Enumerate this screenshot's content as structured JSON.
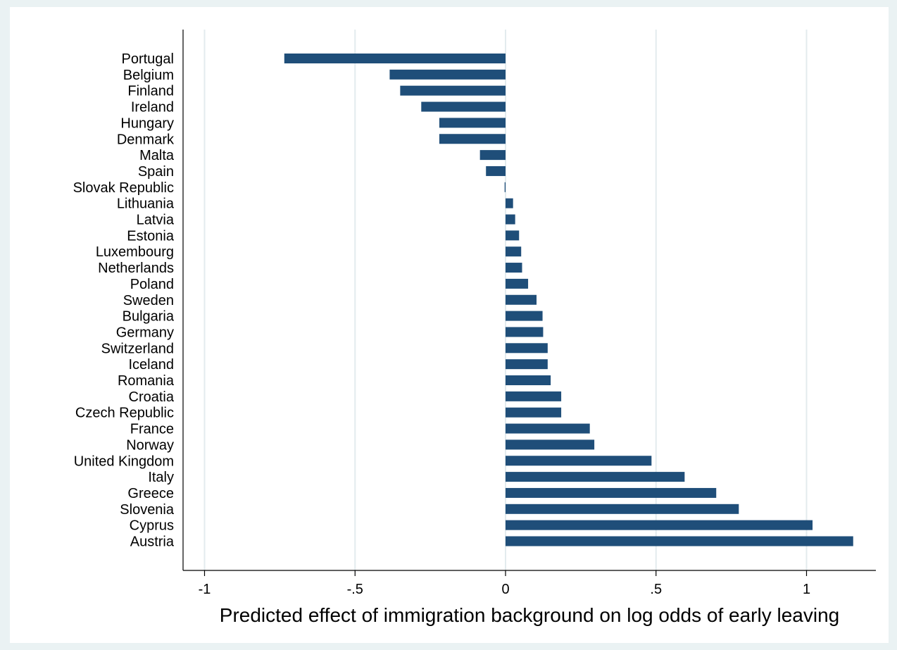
{
  "chart_data": {
    "type": "bar",
    "orientation": "horizontal",
    "title": "",
    "xlabel": "Predicted effect of immigration background on log odds of early leaving",
    "ylabel": "",
    "xlim": [
      -1.07,
      1.23
    ],
    "xticks": [
      -1,
      -0.5,
      0,
      0.5,
      1
    ],
    "xtick_labels": [
      "-1",
      "-.5",
      "0",
      ".5",
      "1"
    ],
    "grid": "vertical",
    "legend": "none",
    "bar_color": "#1f4e79",
    "grid_color": "#e3ebee",
    "background_outer": "#eaf2f3",
    "background_plot": "#ffffff",
    "categories": [
      "Portugal",
      "Belgium",
      "Finland",
      "Ireland",
      "Hungary",
      "Denmark",
      "Malta",
      "Spain",
      "Slovak Republic",
      "Lithuania",
      "Latvia",
      "Estonia",
      "Luxembourg",
      "Netherlands",
      "Poland",
      "Sweden",
      "Bulgaria",
      "Germany",
      "Switzerland",
      "Iceland",
      "Romania",
      "Croatia",
      "Czech Republic",
      "France",
      "Norway",
      "United Kingdom",
      "Italy",
      "Greece",
      "Slovenia",
      "Cyprus",
      "Austria"
    ],
    "values": [
      -0.735,
      -0.385,
      -0.35,
      -0.28,
      -0.22,
      -0.22,
      -0.085,
      -0.065,
      -0.003,
      0.025,
      0.032,
      0.045,
      0.052,
      0.055,
      0.075,
      0.103,
      0.123,
      0.125,
      0.14,
      0.14,
      0.15,
      0.185,
      0.185,
      0.28,
      0.295,
      0.485,
      0.595,
      0.7,
      0.775,
      1.02,
      1.155
    ]
  }
}
